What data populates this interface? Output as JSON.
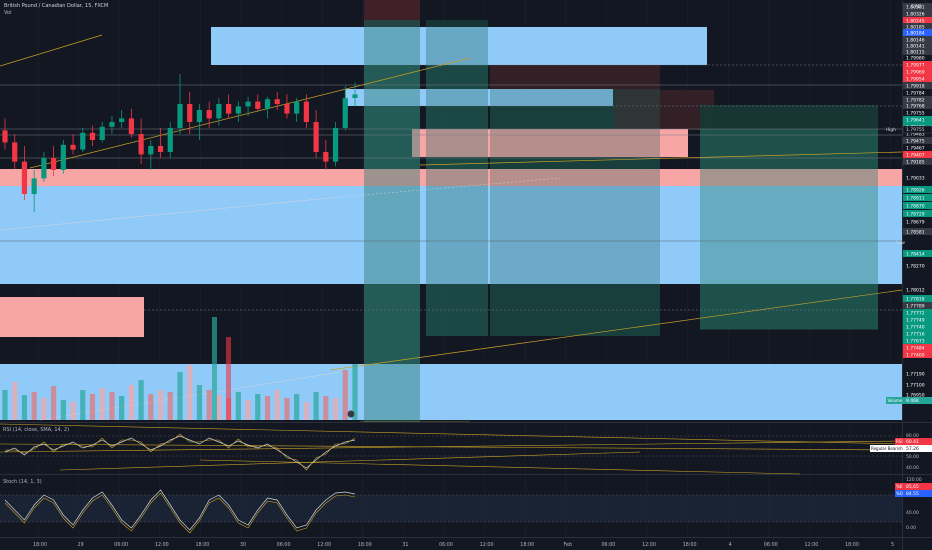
{
  "header": {
    "symbol": "British Pound / Canadian Dollar, 15, FXCM",
    "vol_label": "Vol",
    "currency": "CAD"
  },
  "price_axis": {
    "tags": [
      {
        "v": "1.80381",
        "c": "#363a45"
      },
      {
        "v": "1.80326",
        "c": "#363a45"
      },
      {
        "v": "1.80245",
        "c": "#f23645"
      },
      {
        "v": "1.80185",
        "c": "#363a45"
      },
      {
        "v": "1.80184",
        "c": "#2962ff"
      },
      {
        "v": "1.80146",
        "c": "#363a45"
      },
      {
        "v": "1.80141",
        "c": "#363a45"
      },
      {
        "v": "1.80115",
        "c": "#363a45"
      },
      {
        "v": "1.79980",
        "c": "#131722"
      },
      {
        "v": "1.79977",
        "c": "#f23645"
      },
      {
        "v": "1.79969",
        "c": "#f23645"
      },
      {
        "v": "1.79954",
        "c": "#f23645"
      },
      {
        "v": "1.79918",
        "c": "#363a45"
      },
      {
        "v": "1.79784",
        "c": "#131722"
      },
      {
        "v": "1.79782",
        "c": "#363a45"
      },
      {
        "v": "1.79768",
        "c": "#363a45"
      },
      {
        "v": "1.79755",
        "c": "#131722"
      },
      {
        "v": "1.79641",
        "c": "#089981"
      },
      {
        "v": "1.79603",
        "c": "#089981"
      },
      {
        "v": "1.79483",
        "c": "#131722"
      },
      {
        "v": "1.79475",
        "c": "#363a45"
      },
      {
        "v": "1.79467",
        "c": "#131722"
      },
      {
        "v": "1.79407",
        "c": "#f23645"
      },
      {
        "v": "1.79185",
        "c": "#363a45"
      },
      {
        "v": "1.79033",
        "c": "#131722"
      },
      {
        "v": "1.78926",
        "c": "#089981"
      },
      {
        "v": "1.78911",
        "c": "#089981"
      },
      {
        "v": "1.78870",
        "c": "#089981"
      },
      {
        "v": "1.78729",
        "c": "#089981"
      },
      {
        "v": "1.78679",
        "c": "#131722"
      },
      {
        "v": "1.78581",
        "c": "#363a45"
      },
      {
        "v": "1.78414",
        "c": "#089981"
      },
      {
        "v": "1.78270",
        "c": "#131722"
      },
      {
        "v": "1.78012",
        "c": "#131722"
      },
      {
        "v": "1.77818",
        "c": "#089981"
      },
      {
        "v": "1.77789",
        "c": "#363a45"
      },
      {
        "v": "1.77772",
        "c": "#089981"
      },
      {
        "v": "1.77749",
        "c": "#089981"
      },
      {
        "v": "1.77740",
        "c": "#089981"
      },
      {
        "v": "1.77716",
        "c": "#089981"
      },
      {
        "v": "1.77673",
        "c": "#089981"
      },
      {
        "v": "1.77484",
        "c": "#f23645"
      },
      {
        "v": "1.77400",
        "c": "#f23645"
      },
      {
        "v": "1.77190",
        "c": "#131722"
      },
      {
        "v": "1.77100",
        "c": "#131722"
      },
      {
        "v": "1.76950",
        "c": "#131722"
      }
    ],
    "high_label": "High",
    "high_value": "1.79755",
    "low_label": "Low",
    "low_value": "1.78679",
    "volume_label": "Volume",
    "volume_value": "9.46K"
  },
  "rsi": {
    "label": "RSI (14, close, SMA, 14, 2)",
    "rsi_tag": "RSI",
    "rsi_value": "60.41",
    "div_label": "Regular Bearish",
    "div_value": "57.26",
    "ticks": [
      "80.00",
      "60.00",
      "50.00",
      "40.00"
    ]
  },
  "stoch": {
    "label": "Stoch (14, 1, 3)",
    "k_tag": "%K",
    "k_value": "85.65",
    "d_tag": "%D",
    "d_value": "84.55",
    "ticks": [
      "120.00",
      "40.00",
      "0.00"
    ]
  },
  "time_axis": [
    "18:00",
    "29",
    "06:00",
    "12:00",
    "18:00",
    "30",
    "06:00",
    "12:00",
    "18:00",
    "31",
    "06:00",
    "12:00",
    "18:00",
    "Feb",
    "06:00",
    "12:00",
    "18:00",
    "4",
    "06:00",
    "12:00",
    "18:00",
    "5"
  ],
  "colors": {
    "up": "#089981",
    "down": "#f23645",
    "zone_blue": "#90caf9",
    "zone_red": "#f8a5a5"
  },
  "chart_data": {
    "type": "candlestick",
    "ylim": [
      1.7695,
      1.8045
    ],
    "candles": [
      [
        1.7938,
        1.7948,
        1.7922,
        1.7928
      ],
      [
        1.7928,
        1.7935,
        1.7906,
        1.7912
      ],
      [
        1.7912,
        1.7925,
        1.788,
        1.7885
      ],
      [
        1.7885,
        1.7905,
        1.787,
        1.7898
      ],
      [
        1.7898,
        1.792,
        1.7895,
        1.7915
      ],
      [
        1.7915,
        1.7925,
        1.79,
        1.7905
      ],
      [
        1.7905,
        1.793,
        1.7902,
        1.7926
      ],
      [
        1.7926,
        1.7935,
        1.7918,
        1.7922
      ],
      [
        1.7922,
        1.794,
        1.792,
        1.7936
      ],
      [
        1.7936,
        1.7942,
        1.7925,
        1.793
      ],
      [
        1.793,
        1.7945,
        1.7928,
        1.7941
      ],
      [
        1.7941,
        1.795,
        1.7935,
        1.7945
      ],
      [
        1.7945,
        1.7955,
        1.794,
        1.7948
      ],
      [
        1.7948,
        1.7956,
        1.7932,
        1.7935
      ],
      [
        1.7935,
        1.7948,
        1.791,
        1.7918
      ],
      [
        1.7918,
        1.793,
        1.7905,
        1.7925
      ],
      [
        1.7925,
        1.794,
        1.7915,
        1.792
      ],
      [
        1.792,
        1.7945,
        1.7915,
        1.794
      ],
      [
        1.794,
        1.7985,
        1.7935,
        1.796
      ],
      [
        1.796,
        1.797,
        1.7935,
        1.7945
      ],
      [
        1.7945,
        1.796,
        1.793,
        1.7955
      ],
      [
        1.7955,
        1.7962,
        1.794,
        1.7948
      ],
      [
        1.7948,
        1.7965,
        1.7942,
        1.796
      ],
      [
        1.796,
        1.7968,
        1.7948,
        1.7952
      ],
      [
        1.7952,
        1.7962,
        1.7945,
        1.7958
      ],
      [
        1.7958,
        1.7966,
        1.795,
        1.7962
      ],
      [
        1.7962,
        1.7968,
        1.7954,
        1.7956
      ],
      [
        1.7956,
        1.7966,
        1.7948,
        1.7964
      ],
      [
        1.7964,
        1.797,
        1.7955,
        1.796
      ],
      [
        1.796,
        1.7968,
        1.7948,
        1.7952
      ],
      [
        1.7952,
        1.7965,
        1.7945,
        1.7962
      ],
      [
        1.7962,
        1.7968,
        1.794,
        1.7945
      ],
      [
        1.7945,
        1.7955,
        1.7915,
        1.792
      ],
      [
        1.792,
        1.793,
        1.7905,
        1.7912
      ],
      [
        1.7912,
        1.7945,
        1.7908,
        1.794
      ],
      [
        1.794,
        1.7975,
        1.7938,
        1.7965
      ],
      [
        1.7965,
        1.7978,
        1.7958,
        1.7968
      ]
    ]
  }
}
